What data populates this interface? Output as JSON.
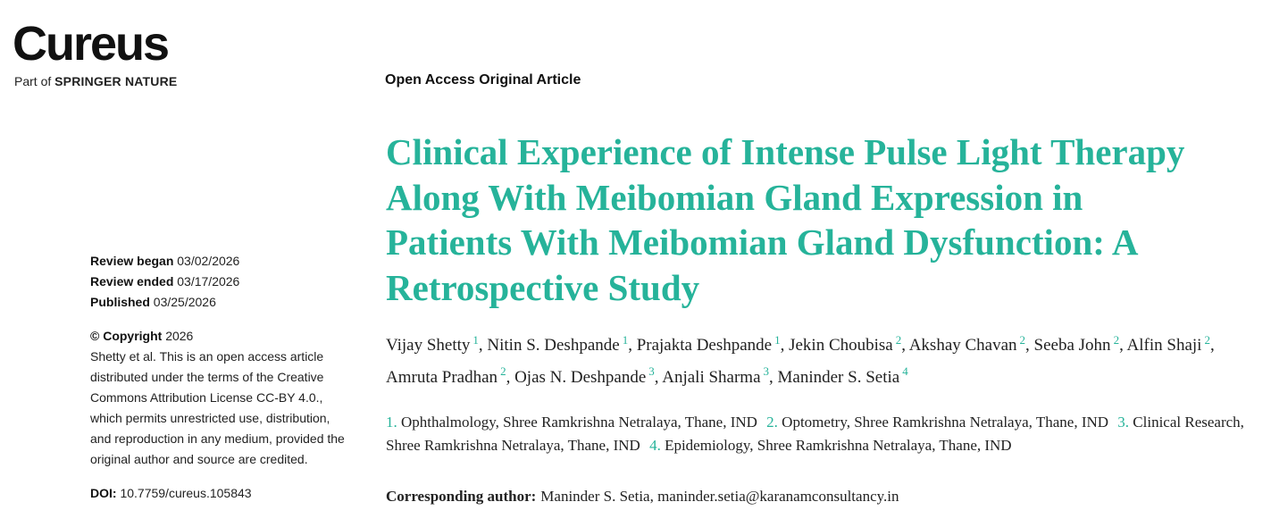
{
  "header": {
    "logo": "Cureus",
    "tagline_prefix": "Part of",
    "tagline_brand": "SPRINGER NATURE"
  },
  "article_type": "Open Access Original Article",
  "title": "Clinical Experience of Intense Pulse Light Therapy Along With Meibomian Gland Expression in Patients With Meibomian Gland Dysfunction: A Retrospective Study",
  "authors": [
    {
      "name": "Vijay Shetty",
      "aff": "1"
    },
    {
      "name": "Nitin S. Deshpande",
      "aff": "1"
    },
    {
      "name": "Prajakta Deshpande",
      "aff": "1"
    },
    {
      "name": "Jekin Choubisa",
      "aff": "2"
    },
    {
      "name": "Akshay Chavan",
      "aff": "2"
    },
    {
      "name": "Seeba John",
      "aff": "2"
    },
    {
      "name": "Alfin Shaji",
      "aff": "2"
    },
    {
      "name": "Amruta Pradhan",
      "aff": "2"
    },
    {
      "name": "Ojas N. Deshpande",
      "aff": "3"
    },
    {
      "name": "Anjali Sharma",
      "aff": "3"
    },
    {
      "name": "Maninder S. Setia",
      "aff": "4"
    }
  ],
  "affiliations": [
    {
      "num": "1.",
      "text": "Ophthalmology, Shree Ramkrishna Netralaya, Thane, IND"
    },
    {
      "num": "2.",
      "text": "Optometry, Shree Ramkrishna Netralaya, Thane, IND"
    },
    {
      "num": "3.",
      "text": "Clinical Research, Shree Ramkrishna Netralaya, Thane, IND"
    },
    {
      "num": "4.",
      "text": "Epidemiology, Shree Ramkrishna Netralaya, Thane, IND"
    }
  ],
  "corresponding": {
    "label": "Corresponding author:",
    "text": "Maninder S. Setia, maninder.setia@karanamconsultancy.in"
  },
  "sidebar": {
    "dates": [
      {
        "label": "Review began",
        "value": "03/02/2026"
      },
      {
        "label": "Review ended",
        "value": "03/17/2026"
      },
      {
        "label": "Published",
        "value": "03/25/2026"
      }
    ],
    "copyright": {
      "label": "© Copyright",
      "year": "2026",
      "text": "Shetty et al. This is an open access article distributed under the terms of the Creative Commons Attribution License CC-BY 4.0., which permits unrestricted use, distribution, and reproduction in any medium, provided the original author and source are credited."
    },
    "doi": {
      "label": "DOI:",
      "value": "10.7759/cureus.105843"
    }
  }
}
